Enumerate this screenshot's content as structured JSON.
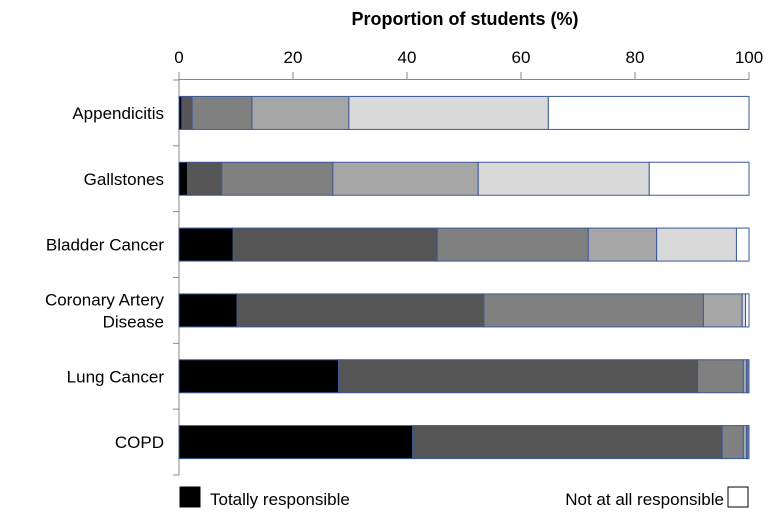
{
  "chart_data": {
    "type": "bar",
    "orientation": "horizontal",
    "stacked": true,
    "title": "",
    "xlabel": "Proportion of students (%)",
    "ylabel": "",
    "xlim": [
      0,
      100
    ],
    "xticks": [
      "0",
      "20",
      "40",
      "60",
      "80",
      "100"
    ],
    "categories": [
      "Appendicitis",
      "Gallstones",
      "Bladder Cancer",
      "Coronary Artery\nDisease",
      "Lung Cancer",
      "COPD"
    ],
    "colors": [
      "#000000",
      "#555555",
      "#808080",
      "#a6a6a6",
      "#d9d9d9",
      "#ffffff"
    ],
    "outline_color": "#3b5998",
    "values": [
      [
        0.5,
        1.8,
        10.5,
        17.0,
        35.0,
        35.2
      ],
      [
        1.5,
        6.0,
        19.5,
        25.5,
        30.0,
        17.5
      ],
      [
        9.5,
        35.8,
        26.5,
        12.0,
        14.0,
        2.2
      ],
      [
        10.2,
        43.3,
        38.5,
        6.8,
        0.6,
        0.6
      ],
      [
        28.0,
        63.0,
        8.0,
        0.6,
        0.2,
        0.2
      ],
      [
        41.0,
        54.3,
        3.7,
        0.6,
        0.2,
        0.2
      ]
    ],
    "legend": {
      "left_label": "Totally responsible",
      "right_label": "Not at all responsible",
      "placement": "bottom"
    },
    "grid": false
  }
}
